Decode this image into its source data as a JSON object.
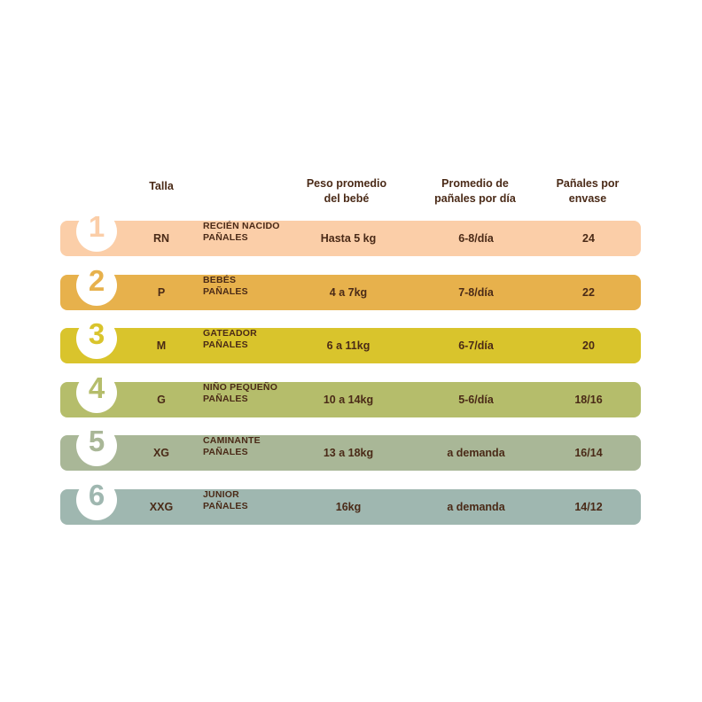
{
  "headers": {
    "talla": "Talla",
    "peso_line1": "Peso promedio",
    "peso_line2": "del bebé",
    "prom_line1": "Promedio de",
    "prom_line2": "pañales por día",
    "pan_line1": "Pañales por",
    "pan_line2": "envase"
  },
  "rows": [
    {
      "number": "1",
      "talla": "RN",
      "desc1": "RECIÉN NACIDO",
      "desc2": "PAÑALES",
      "peso": "Hasta 5 kg",
      "promedio": "6-8/día",
      "panales": "24",
      "color": "#fbcea8"
    },
    {
      "number": "2",
      "talla": "P",
      "desc1": "BEBÉS",
      "desc2": "PAÑALES",
      "peso": "4 a 7kg",
      "promedio": "7-8/día",
      "panales": "22",
      "color": "#e7b14c"
    },
    {
      "number": "3",
      "talla": "M",
      "desc1": "GATEADOR",
      "desc2": "PAÑALES",
      "peso": "6 a 11kg",
      "promedio": "6-7/día",
      "panales": "20",
      "color": "#d9c42c"
    },
    {
      "number": "4",
      "talla": "G",
      "desc1": "NIÑO PEQUEÑO",
      "desc2": "PAÑALES",
      "peso": "10 a 14kg",
      "promedio": "5-6/día",
      "panales": "18/16",
      "color": "#b5bd6b"
    },
    {
      "number": "5",
      "talla": "XG",
      "desc1": "CAMINANTE",
      "desc2": "PAÑALES",
      "peso": "13 a 18kg",
      "promedio": "a demanda",
      "panales": "16/14",
      "color": "#a9b797"
    },
    {
      "number": "6",
      "talla": "XXG",
      "desc1": "JUNIOR",
      "desc2": "PAÑALES",
      "peso": "16kg",
      "promedio": "a demanda",
      "panales": "14/12",
      "color": "#9fb7b0"
    }
  ]
}
